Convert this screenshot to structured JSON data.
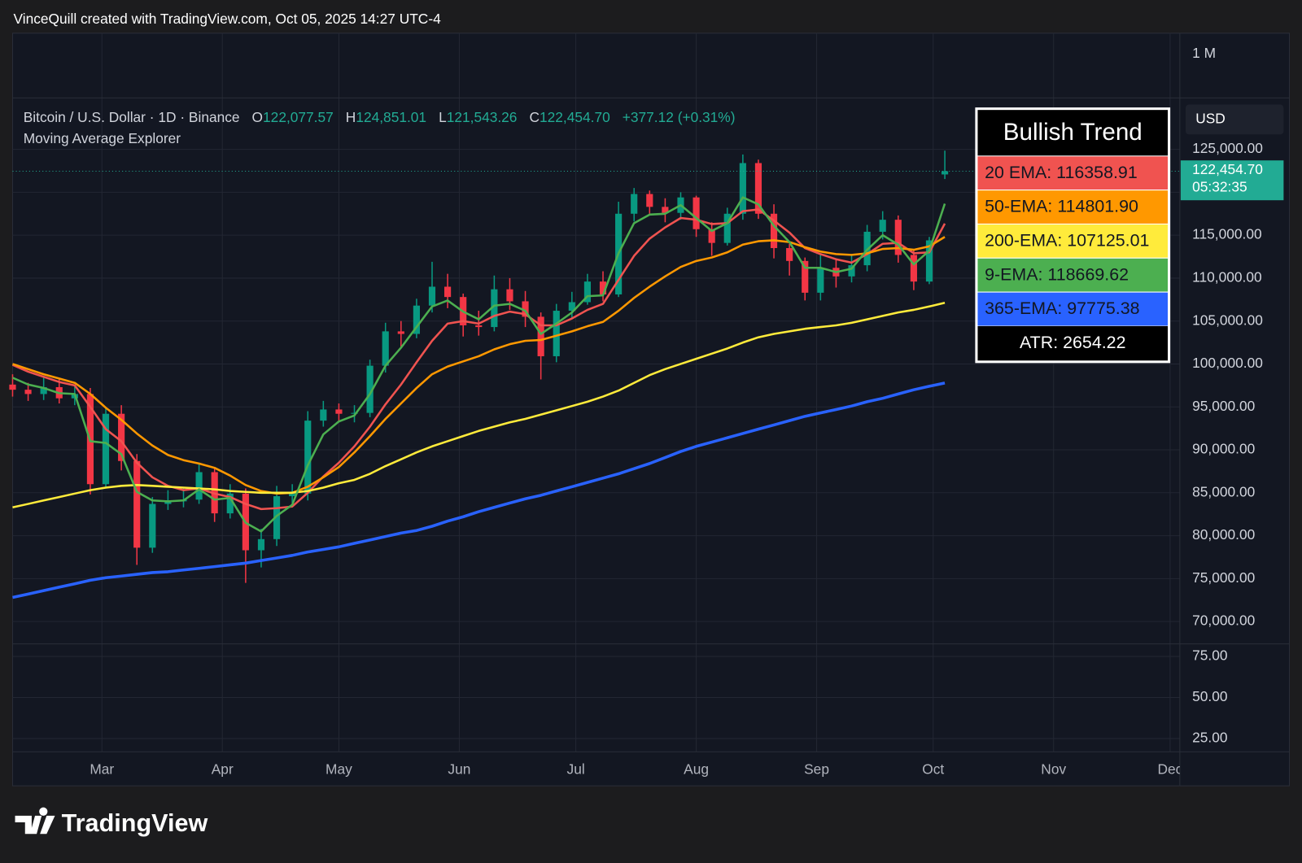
{
  "chart_data": {
    "type": "candlestick",
    "header": {
      "credit": "VinceQuill created with TradingView.com, Oct 05, 2025 14:27 UTC-4",
      "symbol": "Bitcoin / U.S. Dollar · 1D · Binance",
      "ohlc": [
        {
          "key": "O",
          "value": "122,077.57"
        },
        {
          "key": "H",
          "value": "124,851.01"
        },
        {
          "key": "L",
          "value": "121,543.26"
        },
        {
          "key": "C",
          "value": "122,454.70"
        }
      ],
      "change": "+377.12 (+0.31%)",
      "indicator": "Moving Average Explorer",
      "top_pane_label": "1 M",
      "currency": "USD",
      "branding": "TradingView"
    },
    "last_price": {
      "value": 122454.7,
      "label": "122,454.70"
    },
    "countdown": "05:32:35",
    "x": [
      -23,
      -19,
      -15,
      -11,
      -7,
      -3,
      1,
      5,
      9,
      13,
      17,
      21,
      25,
      29,
      33,
      37,
      41,
      45,
      49,
      53,
      57,
      61,
      65,
      69,
      73,
      77,
      81,
      85,
      89,
      93,
      97,
      101,
      105,
      109,
      113,
      117,
      121,
      125,
      129,
      133,
      137,
      141,
      145,
      149,
      153,
      157,
      161,
      165,
      169,
      173,
      177,
      181,
      185,
      189,
      193,
      197,
      201,
      205,
      209,
      213,
      217
    ],
    "xlim": [
      -23,
      277.5
    ],
    "xticks": [
      {
        "value": 0,
        "label": "Mar"
      },
      {
        "value": 31,
        "label": "Apr"
      },
      {
        "value": 61,
        "label": "May"
      },
      {
        "value": 92,
        "label": "Jun"
      },
      {
        "value": 122,
        "label": "Jul"
      },
      {
        "value": 153,
        "label": "Aug"
      },
      {
        "value": 184,
        "label": "Sep"
      },
      {
        "value": 214,
        "label": "Oct"
      },
      {
        "value": 245,
        "label": "Nov"
      },
      {
        "value": 275,
        "label": "Dec"
      }
    ],
    "ylim": [
      67390,
      130990
    ],
    "yticks": [
      {
        "value": 70000,
        "label": "70,000.00"
      },
      {
        "value": 75000,
        "label": "75,000.00"
      },
      {
        "value": 80000,
        "label": "80,000.00"
      },
      {
        "value": 85000,
        "label": "85,000.00"
      },
      {
        "value": 90000,
        "label": "90,000.00"
      },
      {
        "value": 95000,
        "label": "95,000.00"
      },
      {
        "value": 100000,
        "label": "100,000.00"
      },
      {
        "value": 105000,
        "label": "105,000.00"
      },
      {
        "value": 110000,
        "label": "110,000.00"
      },
      {
        "value": 115000,
        "label": "115,000.00"
      },
      {
        "value": 120000,
        "label": "120,000.00"
      },
      {
        "value": 125000,
        "label": "125,000.00"
      }
    ],
    "lower_pane": {
      "ylim": [
        16.9,
        82.6
      ],
      "yticks": [
        {
          "value": 25,
          "label": "25.00"
        },
        {
          "value": 50,
          "label": "50.00"
        },
        {
          "value": 75,
          "label": "75.00"
        }
      ]
    },
    "grid": true,
    "candles": {
      "up_color": "#089981",
      "down_color": "#f23645",
      "open": [
        97600,
        97000,
        96500,
        97300,
        96000,
        96500,
        86000,
        94200,
        88700,
        78600,
        83700,
        84000,
        84200,
        87400,
        82600,
        84900,
        78300,
        79600,
        84600,
        84900,
        93400,
        94700,
        94200,
        94300,
        99800,
        103800,
        103500,
        106800,
        109000,
        107800,
        104500,
        104300,
        108700,
        107300,
        105500,
        100900,
        106200,
        107200,
        109600,
        108100,
        117500,
        119800,
        118300,
        117600,
        119400,
        115700,
        114100,
        117500,
        123400,
        117500,
        113500,
        112000,
        108300,
        111200,
        110200,
        111500,
        115400,
        116800,
        112700,
        109600,
        122077.57
      ],
      "high": [
        98800,
        97800,
        98400,
        98300,
        97500,
        97200,
        95000,
        95200,
        89500,
        84500,
        85300,
        85500,
        88500,
        88000,
        86000,
        85500,
        80800,
        85800,
        86000,
        94500,
        95700,
        95400,
        95200,
        100500,
        104800,
        105000,
        107600,
        111900,
        110500,
        108200,
        106200,
        110300,
        110000,
        108500,
        106000,
        107000,
        108400,
        110500,
        110800,
        118900,
        120500,
        120200,
        119300,
        120000,
        119600,
        116500,
        118200,
        124400,
        123800,
        118600,
        114000,
        112400,
        112800,
        112300,
        112600,
        116200,
        117800,
        117300,
        113300,
        114800,
        124851.01
      ],
      "low": [
        96200,
        95700,
        95800,
        95400,
        95200,
        84800,
        85600,
        87600,
        76600,
        78000,
        83000,
        83300,
        83700,
        81600,
        82000,
        74500,
        76300,
        78800,
        83800,
        84100,
        92700,
        93300,
        93200,
        93800,
        99000,
        102000,
        103000,
        106000,
        106500,
        103200,
        103300,
        103800,
        106300,
        104300,
        98200,
        100200,
        105400,
        106900,
        107300,
        107800,
        116600,
        117300,
        116500,
        116800,
        114800,
        112600,
        113800,
        116800,
        116900,
        112300,
        110300,
        107400,
        107400,
        108900,
        109500,
        110800,
        114500,
        111800,
        108600,
        109300,
        121543.26
      ],
      "close": [
        97000,
        96500,
        97300,
        96000,
        96500,
        86000,
        94200,
        88700,
        78600,
        83700,
        84000,
        84200,
        87400,
        82600,
        84900,
        78300,
        79600,
        84600,
        84900,
        93400,
        94700,
        94200,
        94300,
        99800,
        103800,
        103500,
        106800,
        109000,
        107800,
        104500,
        104300,
        108700,
        107300,
        105500,
        100900,
        106200,
        107200,
        109600,
        108100,
        117500,
        119800,
        118300,
        117600,
        119400,
        115700,
        114100,
        117500,
        123400,
        117500,
        113500,
        112000,
        108300,
        111200,
        110200,
        111500,
        115400,
        116800,
        112700,
        109600,
        114400,
        122454.7
      ]
    },
    "series": [
      {
        "label": "20 EMA: 116358.91",
        "color": "#f05350",
        "values": [
          99900,
          99100,
          98500,
          97900,
          97500,
          95000,
          92400,
          91000,
          88500,
          86800,
          85800,
          85300,
          85500,
          84900,
          84500,
          83700,
          83100,
          83200,
          83400,
          85000,
          86900,
          88500,
          90400,
          92700,
          95300,
          97600,
          100200,
          102700,
          104700,
          105000,
          104700,
          105600,
          106100,
          105800,
          104500,
          104500,
          105300,
          106300,
          107000,
          109800,
          112600,
          114600,
          115900,
          117000,
          116800,
          116300,
          116400,
          117800,
          118000,
          116700,
          115300,
          113500,
          112800,
          112200,
          111800,
          112800,
          114000,
          114100,
          112900,
          113000,
          116358.91
        ]
      },
      {
        "label": "50-EMA: 114801.90",
        "color": "#ff9800",
        "values": [
          100000,
          99400,
          98800,
          98300,
          97800,
          96500,
          94900,
          93500,
          91900,
          90500,
          89400,
          88800,
          88400,
          87900,
          87000,
          85900,
          85200,
          84900,
          85000,
          85700,
          86800,
          88000,
          89700,
          91600,
          93600,
          95400,
          97200,
          98800,
          99700,
          100300,
          100900,
          101700,
          102300,
          102700,
          102800,
          103300,
          103800,
          104400,
          104900,
          106200,
          107700,
          109000,
          110200,
          111300,
          112000,
          112400,
          113000,
          113900,
          114300,
          114400,
          114200,
          113600,
          113100,
          112800,
          112700,
          112900,
          113400,
          113500,
          113300,
          113700,
          114801.9
        ]
      },
      {
        "label": "200-EMA: 107125.01",
        "color": "#ffeb3b",
        "values": [
          83300,
          83700,
          84100,
          84500,
          84900,
          85300,
          85600,
          85800,
          85900,
          85800,
          85700,
          85600,
          85500,
          85400,
          85200,
          85100,
          85000,
          85000,
          85000,
          85200,
          85600,
          86100,
          86500,
          87200,
          88100,
          88900,
          89700,
          90400,
          91000,
          91600,
          92200,
          92700,
          93200,
          93600,
          94100,
          94600,
          95100,
          95600,
          96200,
          96900,
          97800,
          98700,
          99400,
          100000,
          100600,
          101200,
          101800,
          102500,
          103100,
          103500,
          103800,
          104100,
          104300,
          104500,
          104800,
          105200,
          105600,
          106000,
          106300,
          106700,
          107125.01
        ]
      },
      {
        "label": "9-EMA: 118669.62",
        "color": "#4caf50",
        "values": [
          98400,
          97600,
          97200,
          96600,
          96500,
          91000,
          90800,
          89500,
          85100,
          84100,
          84000,
          84100,
          85400,
          84200,
          84400,
          81500,
          80500,
          82300,
          83600,
          88200,
          91800,
          93300,
          94000,
          96500,
          99800,
          101900,
          104300,
          106700,
          107400,
          106100,
          105200,
          106800,
          107000,
          106200,
          103500,
          104700,
          106000,
          107900,
          108000,
          112900,
          116400,
          117400,
          117500,
          118500,
          117000,
          115500,
          116400,
          119400,
          118600,
          116100,
          114200,
          111200,
          111200,
          110700,
          111100,
          113300,
          115000,
          113900,
          111600,
          113200,
          118669.62
        ]
      },
      {
        "label": "365-EMA: 97775.38",
        "color": "#2962ff",
        "values": [
          72800,
          73200,
          73600,
          74000,
          74400,
          74800,
          75100,
          75300,
          75500,
          75700,
          75800,
          76000,
          76200,
          76400,
          76600,
          76800,
          77100,
          77400,
          77700,
          78100,
          78400,
          78700,
          79100,
          79500,
          79900,
          80300,
          80600,
          81100,
          81700,
          82200,
          82800,
          83300,
          83800,
          84300,
          84700,
          85200,
          85700,
          86200,
          86700,
          87200,
          87800,
          88400,
          89100,
          89800,
          90400,
          90900,
          91400,
          91900,
          92400,
          92900,
          93400,
          93900,
          94300,
          94700,
          95100,
          95600,
          96000,
          96500,
          97000,
          97400,
          97775.38
        ]
      }
    ],
    "info_table": {
      "title": "Bullish Trend",
      "atr": "ATR: 2654.22"
    }
  }
}
